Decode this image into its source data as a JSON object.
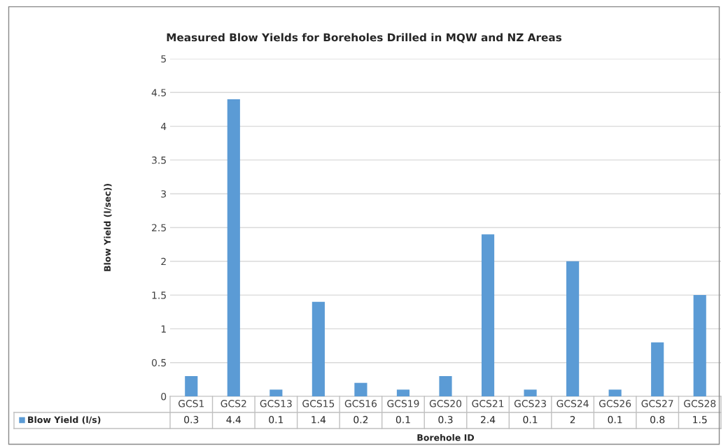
{
  "chart_data": {
    "type": "bar",
    "title": "Measured Blow Yields for Boreholes Drilled in MQW and NZ Areas",
    "xlabel": "Borehole ID",
    "ylabel": "Blow Yield (l/sec))",
    "categories": [
      "GCS1",
      "GCS2",
      "GCS13",
      "GCS15",
      "GCS16",
      "GCS19",
      "GCS20",
      "GCS21",
      "GCS23",
      "GCS24",
      "GCS26",
      "GCS27",
      "GCS28"
    ],
    "series": [
      {
        "name": "Blow Yield (l/s)",
        "color": "#5b9bd5",
        "values": [
          0.3,
          4.4,
          0.1,
          1.4,
          0.2,
          0.1,
          0.3,
          2.4,
          0.1,
          2,
          0.1,
          0.8,
          1.5
        ]
      }
    ],
    "ylim": [
      0,
      5
    ],
    "yticks": [
      0,
      0.5,
      1,
      1.5,
      2,
      2.5,
      3,
      3.5,
      4,
      4.5,
      5
    ],
    "grid": "y",
    "legend": "bottom",
    "data_labels": true
  }
}
